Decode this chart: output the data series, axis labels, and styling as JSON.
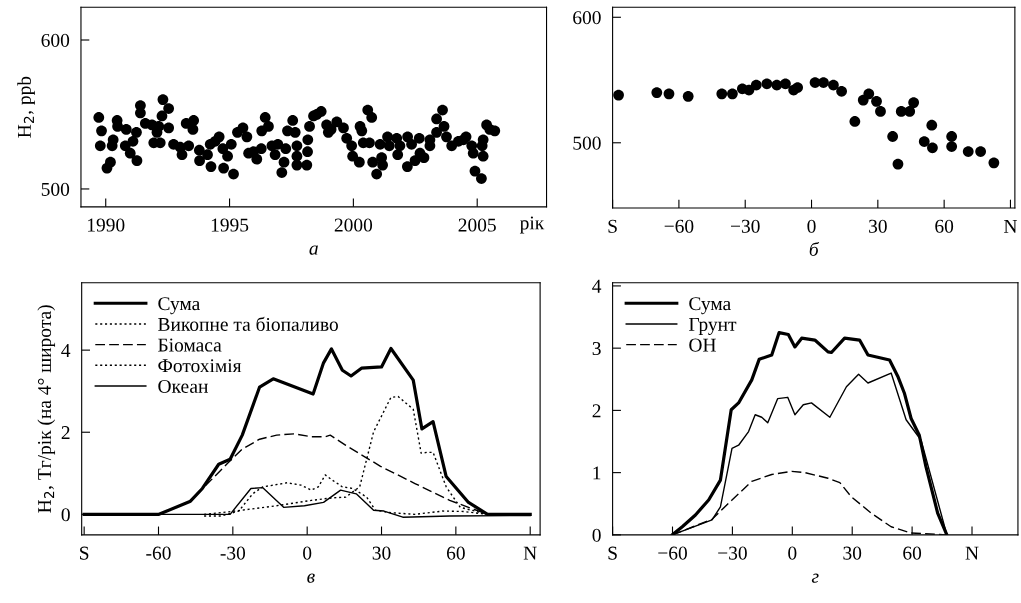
{
  "chart_data": [
    {
      "type": "scatter",
      "ylabel": "H$_{2}$, ppb",
      "xlabel": "а",
      "annotations": [
        "рік"
      ],
      "marker": "circle",
      "xlim": [
        1989,
        2007.8
      ],
      "ylim": [
        488,
        622
      ],
      "xticks": [
        1990,
        1995,
        2000,
        2005
      ],
      "yticks": [
        500,
        600
      ],
      "series": [
        {
          "color": "#000000",
          "x": [
            1989.72,
            1989.83,
            1989.78,
            1990.05,
            1990.19,
            1990.3,
            1990.26,
            1990.46,
            1990.48,
            1990.83,
            1990.79,
            1990.99,
            1991.1,
            1991.24,
            1991.26,
            1991.4,
            1991.4,
            1991.6,
            1991.87,
            1991.94,
            1992.07,
            1992.14,
            1992.2,
            1992.31,
            1992.27,
            1992.54,
            1992.54,
            1992.74,
            1993.08,
            1993.01,
            1993.25,
            1993.35,
            1993.55,
            1993.52,
            1993.78,
            1993.79,
            1994.11,
            1994.22,
            1994.25,
            1994.42,
            1994.58,
            1994.73,
            1994.76,
            1994.92,
            1995.07,
            1995.16,
            1995.32,
            1995.54,
            1995.7,
            1995.77,
            1995.97,
            1996.1,
            1996.28,
            1996.3,
            1996.44,
            1996.57,
            1996.71,
            1996.84,
            1996.95,
            1997.11,
            1997.2,
            1997.27,
            1997.34,
            1997.55,
            1997.65,
            1997.72,
            1997.72,
            1997.72,
            1998.12,
            1998.15,
            1998.16,
            1998.23,
            1998.39,
            1998.52,
            1998.7,
            1998.92,
            1998.99,
            1999.1,
            1999.33,
            1999.6,
            1999.73,
            1999.93,
            1999.97,
            2000.24,
            2000.27,
            2000.34,
            2000.4,
            2000.58,
            2000.74,
            2000.65,
            2000.78,
            2000.94,
            2001.08,
            2001.14,
            2001.18,
            2001.38,
            2001.45,
            2001.75,
            2001.79,
            2001.88,
            2002.18,
            2002.19,
            2002.35,
            2002.49,
            2002.66,
            2002.69,
            2002.85,
            2003.09,
            2003.09,
            2003.36,
            2003.36,
            2003.6,
            2003.66,
            2003.76,
            2003.97,
            2004.24,
            2004.44,
            2004.55,
            2004.78,
            2004.84,
            2004.91,
            2005.17,
            2005.2,
            2005.24,
            2005.24,
            2005.38,
            2005.51,
            2005.71
          ],
          "values": [
            548,
            539,
            529,
            514,
            518,
            533,
            529,
            546,
            542,
            540,
            529,
            524,
            532,
            538,
            519,
            556,
            551,
            544,
            543,
            531,
            538,
            542,
            531,
            560,
            549,
            554,
            541,
            530,
            523,
            528,
            544,
            529,
            546,
            540,
            526,
            519,
            523,
            530,
            515,
            532,
            535,
            527,
            514,
            522,
            530,
            510,
            538,
            541,
            535,
            524,
            525,
            520,
            527,
            539,
            548,
            542,
            529,
            523,
            530,
            511,
            518,
            527,
            539,
            546,
            538,
            529,
            522,
            516,
            516,
            525,
            533,
            542,
            549,
            550,
            552,
            543,
            538,
            540,
            545,
            541,
            534,
            529,
            522,
            518,
            542,
            539,
            531,
            553,
            548,
            531,
            518,
            510,
            530,
            521,
            516,
            535,
            529,
            534,
            523,
            529,
            515,
            535,
            530,
            519,
            534,
            524,
            521,
            533,
            529,
            547,
            538,
            553,
            542,
            535,
            529,
            532,
            533,
            535,
            529,
            524,
            512,
            507,
            529,
            522,
            533,
            543,
            540,
            539
          ]
        }
      ]
    },
    {
      "type": "scatter",
      "xlabel": "б",
      "marker": "circle",
      "xlim": [
        -90,
        92
      ],
      "ylim": [
        448,
        608
      ],
      "xticks": [
        {
          "value": -90,
          "label": "S"
        },
        {
          "value": -60,
          "label": "−60"
        },
        {
          "value": -30,
          "label": "−30"
        },
        0,
        30,
        60,
        {
          "value": 90,
          "label": "N"
        }
      ],
      "yticks": [
        500,
        600
      ],
      "series": [
        {
          "color": "#000000",
          "x": [
            -87.3,
            -70.0,
            -64.5,
            -55.8,
            -40.6,
            -35.8,
            -31.3,
            -28.3,
            -25.0,
            -20.2,
            -15.7,
            -11.8,
            -8.1,
            -6.3,
            1.6,
            5.4,
            9.9,
            13.6,
            19.6,
            23.4,
            25.9,
            29.4,
            31.2,
            36.7,
            39.1,
            40.6,
            44.4,
            46.2,
            51.0,
            54.4,
            54.7,
            63.4,
            63.4,
            70.9,
            76.5,
            82.5
          ],
          "values": [
            538,
            540,
            539,
            537,
            539,
            539,
            543,
            542,
            546,
            547,
            546,
            547,
            542,
            544,
            548,
            548,
            546,
            541,
            517,
            534,
            539,
            533,
            525,
            505,
            483,
            525,
            525,
            532,
            501,
            514,
            496,
            505,
            497,
            493,
            493,
            484
          ]
        }
      ]
    },
    {
      "type": "line",
      "xlabel": "в",
      "ylabel": "H$_{2}$, Тг/рік (на 4° широта)",
      "legend": "top left",
      "xlim": [
        -91,
        94
      ],
      "ylim": [
        -0.5,
        5.64
      ],
      "xticks": [
        {
          "value": -90,
          "label": "S"
        },
        -60,
        -30,
        0,
        30,
        60,
        {
          "value": 90,
          "label": "N"
        }
      ],
      "yticks": [
        0,
        2,
        4
      ],
      "series": [
        {
          "name": "Сума",
          "color": "#000000",
          "line_style": "solid",
          "x": [
            -90,
            -59.8,
            -47.1,
            -42.3,
            -35.7,
            -31.1,
            -26.2,
            -19.2,
            -13.7,
            2.4,
            6.6,
            9.8,
            14.2,
            17.7,
            21.9,
            30.0,
            33.8,
            42.8,
            46.3,
            50.8,
            56.1,
            65.1,
            72.8,
            90
          ],
          "values": [
            0,
            0,
            0.32,
            0.63,
            1.22,
            1.34,
            1.93,
            3.1,
            3.3,
            2.93,
            3.69,
            4.03,
            3.51,
            3.37,
            3.56,
            3.59,
            4.04,
            3.27,
            2.08,
            2.26,
            0.92,
            0.29,
            0,
            0
          ]
        },
        {
          "name": "Викопне та біопаливо",
          "color": "#000000",
          "line_style": "dotted",
          "x": [
            -41.6,
            -30.4,
            -12.3,
            1.7,
            10.0,
            15.6,
            21.2,
            26.8,
            33.8,
            36.7,
            42.8,
            46.0,
            48.4,
            50.8,
            56.1,
            61.8,
            72.8
          ],
          "values": [
            0,
            0.07,
            0.21,
            0.34,
            0.4,
            0.42,
            0.67,
            2.01,
            2.85,
            2.87,
            2.56,
            1.49,
            1.51,
            1.51,
            0.67,
            0.17,
            0
          ]
        },
        {
          "name": "Біомаса",
          "color": "#000000",
          "line_style": "dashed",
          "x": [
            -59.8,
            -47.1,
            -40.2,
            -31.8,
            -26.2,
            -19.2,
            -12.3,
            -5.3,
            1.7,
            7.3,
            9.3,
            15.6,
            29.6,
            43.5,
            57.5,
            72.8
          ],
          "values": [
            0,
            0.32,
            0.75,
            1.26,
            1.59,
            1.83,
            1.93,
            1.96,
            1.89,
            1.89,
            1.93,
            1.68,
            1.17,
            0.75,
            0.34,
            0
          ]
        },
        {
          "name": "Фотохімія",
          "color": "#000000",
          "line_style": "dotted",
          "x": [
            -41.6,
            -34.6,
            -27.6,
            -22.0,
            -17.9,
            -13.7,
            -8.1,
            -2.5,
            1.7,
            4.5,
            7.3,
            10.0,
            14.2,
            18.4,
            24.0,
            27.5,
            33.8,
            43.5,
            54.7,
            63.0,
            72.8
          ],
          "values": [
            -0.04,
            -0.04,
            0.08,
            0.5,
            0.67,
            0.71,
            0.77,
            0.71,
            0.59,
            0.67,
            0.96,
            0.84,
            0.67,
            0.63,
            0.42,
            0.1,
            0.04,
            0,
            0.08,
            0.07,
            0
          ]
        },
        {
          "name": "Океан",
          "color": "#000000",
          "line_style": "solid",
          "x": [
            -90,
            -31.1,
            -22.7,
            -17.9,
            -9.5,
            -1.1,
            6.6,
            13.5,
            19.8,
            26.8,
            31.0,
            38.6,
            57.5,
            90
          ],
          "values": [
            0,
            0,
            0.63,
            0.65,
            0.17,
            0.21,
            0.29,
            0.59,
            0.5,
            0.1,
            0.08,
            -0.07,
            -0.04,
            -0.03
          ]
        }
      ]
    },
    {
      "type": "line",
      "xlabel": "г",
      "legend": "top left",
      "xlim": [
        -90,
        113
      ],
      "ylim": [
        0,
        4.05
      ],
      "xticks": [
        {
          "value": -90,
          "label": "S"
        },
        {
          "value": -60,
          "label": "−60"
        },
        {
          "value": -30,
          "label": "−30"
        },
        0,
        30,
        60,
        {
          "value": 90,
          "label": "N"
        }
      ],
      "yticks": [
        0,
        1,
        2,
        3,
        4
      ],
      "series": [
        {
          "name": "Сума",
          "color": "#000000",
          "line_style": "solid",
          "x": [
            -60.1,
            -55.1,
            -48.5,
            -41.9,
            -36.0,
            -30.6,
            -26.9,
            -20.3,
            -16.6,
            -10.3,
            -6.6,
            -2.0,
            1.3,
            4.7,
            11.3,
            17.9,
            19.6,
            26.2,
            33.7,
            37.9,
            48.7,
            52.8,
            56.1,
            59.5,
            63.6,
            66.9,
            72.8,
            77.4
          ],
          "values": [
            0,
            0.13,
            0.32,
            0.56,
            0.88,
            2.01,
            2.12,
            2.49,
            2.82,
            2.89,
            3.25,
            3.22,
            3.02,
            3.16,
            3.13,
            2.94,
            2.93,
            3.16,
            3.13,
            2.89,
            2.81,
            2.55,
            2.28,
            1.87,
            1.6,
            1.1,
            0.35,
            0
          ]
        },
        {
          "name": "Грунт",
          "color": "#000000",
          "line_style": "solid",
          "x": [
            -60.1,
            -40.2,
            -36.0,
            -30.2,
            -26.9,
            -21.9,
            -18.6,
            -15.3,
            -12.3,
            -7.3,
            -2.3,
            1.3,
            5.5,
            9.6,
            18.8,
            27.1,
            33.2,
            37.9,
            49.5,
            57.0,
            64.5,
            77.4
          ],
          "values": [
            0,
            0.24,
            0.45,
            1.39,
            1.44,
            1.66,
            1.93,
            1.89,
            1.8,
            2.19,
            2.21,
            1.93,
            2.09,
            2.12,
            1.89,
            2.38,
            2.58,
            2.44,
            2.6,
            1.85,
            1.52,
            0
          ]
        },
        {
          "name": "OH",
          "color": "#000000",
          "line_style": "dashed",
          "x": [
            -60.1,
            -40.2,
            -30.2,
            -20.3,
            -10.3,
            -0.3,
            6.3,
            17.9,
            23.8,
            29.6,
            39.5,
            49.5,
            59.5,
            77.4
          ],
          "values": [
            0,
            0.25,
            0.56,
            0.86,
            0.97,
            1.02,
            1.0,
            0.91,
            0.84,
            0.61,
            0.35,
            0.13,
            0.03,
            0
          ]
        }
      ]
    }
  ]
}
